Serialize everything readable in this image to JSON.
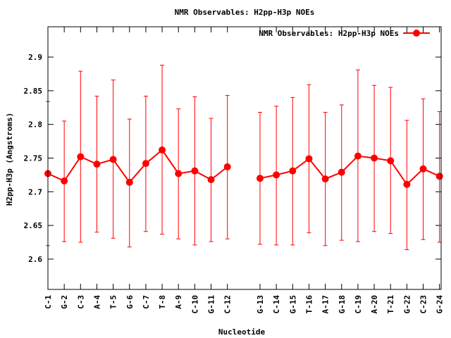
{
  "chart_data": {
    "type": "line",
    "title": "NMR Observables: H2pp-H3p NOEs",
    "xlabel": "Nucleotide",
    "ylabel": "H2pp-H3p (Angstroms)",
    "ylim": [
      2.555,
      2.945
    ],
    "yticks": [
      "2.6",
      "2.65",
      "2.7",
      "2.75",
      "2.8",
      "2.85",
      "2.9"
    ],
    "grid": false,
    "legend_position": "top-right",
    "categories": [
      "C-1",
      "G-2",
      "C-3",
      "A-4",
      "T-5",
      "G-6",
      "C-7",
      "T-8",
      "A-9",
      "C-10",
      "G-11",
      "C-12",
      "G-13",
      "C-14",
      "G-15",
      "T-16",
      "A-17",
      "G-18",
      "C-19",
      "A-20",
      "T-21",
      "G-22",
      "C-23",
      "G-24"
    ],
    "series": [
      {
        "name": "NMR Observables: H2pp-H3p NOEs",
        "color": "#ff0000",
        "values": [
          2.727,
          2.716,
          2.752,
          2.741,
          2.748,
          2.714,
          2.742,
          2.762,
          2.727,
          2.731,
          2.718,
          2.737,
          2.72,
          2.725,
          2.731,
          2.749,
          2.719,
          2.729,
          2.753,
          2.75,
          2.746,
          2.711,
          2.734,
          2.723
        ],
        "error_low": [
          2.62,
          2.626,
          2.625,
          2.64,
          2.631,
          2.618,
          2.641,
          2.637,
          2.63,
          2.621,
          2.626,
          2.63,
          2.622,
          2.621,
          2.621,
          2.639,
          2.62,
          2.628,
          2.626,
          2.641,
          2.638,
          2.614,
          2.629,
          2.625
        ],
        "error_high": [
          2.834,
          2.805,
          2.879,
          2.842,
          2.866,
          2.808,
          2.842,
          2.888,
          2.823,
          2.841,
          2.809,
          2.843,
          2.818,
          2.827,
          2.84,
          2.859,
          2.818,
          2.829,
          2.881,
          2.858,
          2.855,
          2.806,
          2.838,
          2.819
        ]
      }
    ]
  }
}
